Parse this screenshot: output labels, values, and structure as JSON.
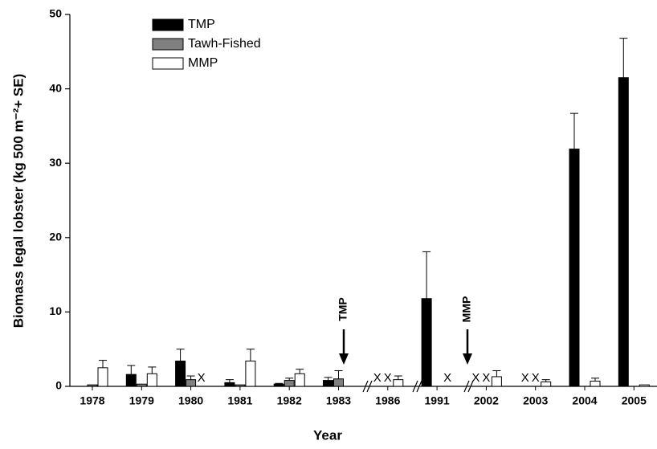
{
  "chart_data": {
    "type": "bar",
    "x_label": "Year",
    "y_label": "Biomass legal lobster (kg 500 m⁻²+ SE)",
    "categories": [
      "1978",
      "1979",
      "1980",
      "1981",
      "1982",
      "1983",
      "1986",
      "1991",
      "2002",
      "2003",
      "2004",
      "2005"
    ],
    "series": [
      {
        "name": "TMP",
        "color": "#000000",
        "values": [
          0,
          1.6,
          3.4,
          0.5,
          0.3,
          0.8,
          null,
          11.8,
          null,
          null,
          31.9,
          41.5
        ],
        "errors": [
          0,
          1.2,
          1.6,
          0.4,
          0.1,
          0.4,
          null,
          6.3,
          null,
          null,
          4.8,
          5.3
        ]
      },
      {
        "name": "Tawh-Fished",
        "color": "#808080",
        "values": [
          0.2,
          0.3,
          0.9,
          0.2,
          0.8,
          1.0,
          null,
          0,
          null,
          null,
          0,
          0
        ],
        "errors": [
          0,
          0,
          0.5,
          0,
          0.3,
          1.1,
          null,
          0,
          null,
          null,
          0,
          0
        ]
      },
      {
        "name": "MMP",
        "color": "#ffffff",
        "values": [
          2.5,
          1.7,
          null,
          3.4,
          1.7,
          0,
          0.9,
          null,
          1.3,
          0.6,
          0.7,
          0.2
        ],
        "errors": [
          1.0,
          0.9,
          null,
          1.6,
          0.6,
          0,
          0.5,
          null,
          0.8,
          0.3,
          0.4,
          0
        ]
      }
    ],
    "missing_label": "X",
    "annotations": [
      {
        "text": "TMP"
      },
      {
        "text": "MMP"
      }
    ],
    "ylim": [
      0,
      50
    ],
    "yticks": [
      0,
      10,
      20,
      30,
      40,
      50
    ],
    "grid": false,
    "legend": "upper left"
  }
}
